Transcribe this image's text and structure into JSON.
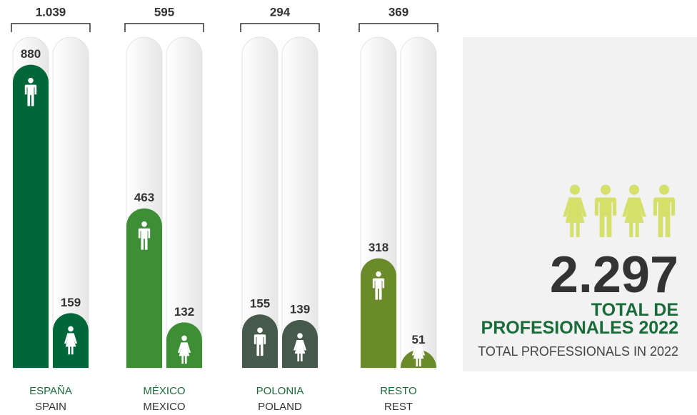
{
  "chart_data": {
    "type": "bar",
    "categories": [
      "ESPAÑA",
      "MÉXICO",
      "POLONIA",
      "RESTO"
    ],
    "categories_en": [
      "SPAIN",
      "MEXICO",
      "POLAND",
      "REST"
    ],
    "colors": [
      "#006838",
      "#3e8e36",
      "#46594b",
      "#6b8a2a"
    ],
    "series": [
      {
        "values": [
          880,
          463,
          155,
          318
        ]
      },
      {
        "values": [
          159,
          132,
          139,
          51
        ]
      }
    ],
    "totals": [
      1039,
      595,
      294,
      369
    ],
    "total_labels": [
      "1.039",
      "595",
      "294",
      "369"
    ],
    "ylim": [
      0,
      960
    ],
    "grand_total": 2297,
    "grand_total_label": "2.297",
    "total_title": "TOTAL DE PROFESIONALES 2022",
    "total_subtitle": "TOTAL PROFESSIONALS IN 2022"
  }
}
